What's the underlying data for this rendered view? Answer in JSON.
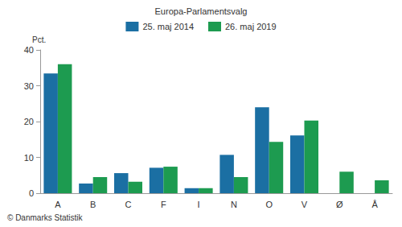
{
  "chart_data": {
    "type": "bar",
    "title": "Europa-Parlamentsvalg",
    "y_label": "Pct.",
    "source": "© Danmarks Statistik",
    "categories": [
      "A",
      "B",
      "C",
      "F",
      "I",
      "N",
      "O",
      "V",
      "Ø",
      "Å"
    ],
    "series": [
      {
        "name": "25. maj 2014",
        "color": "#1b6fa3",
        "values": [
          33.4,
          2.7,
          5.6,
          7.1,
          1.4,
          10.7,
          24.0,
          16.1,
          null,
          null
        ]
      },
      {
        "name": "26. maj 2019",
        "color": "#1d9b50",
        "values": [
          36.0,
          4.5,
          3.2,
          7.4,
          1.4,
          4.5,
          14.3,
          20.3,
          6.0,
          3.6
        ]
      }
    ],
    "ylim": [
      0,
      40
    ],
    "yticks": [
      0,
      10,
      20,
      30,
      40
    ],
    "grid": false,
    "legend": "top"
  }
}
